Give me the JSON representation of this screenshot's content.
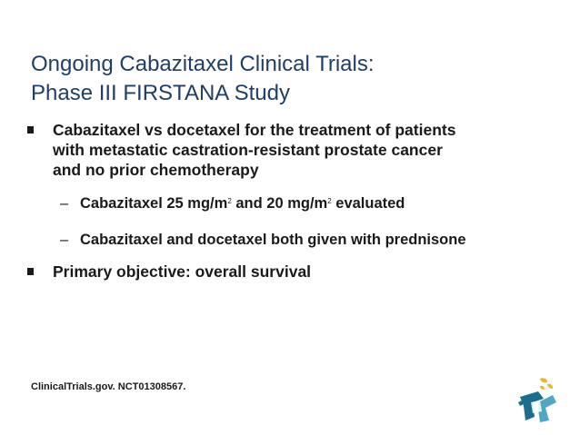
{
  "slide": {
    "title_line1": "Ongoing Cabazitaxel Clinical Trials:",
    "title_line2": "Phase III FIRSTANA Study",
    "bullets": [
      {
        "line1": "Cabazitaxel vs docetaxel for the treatment of patients",
        "line2": "with metastatic castration-resistant prostate cancer",
        "line3": "and no prior chemotherapy"
      },
      {
        "line1": "Primary objective: overall survival"
      }
    ],
    "sub_bullets": [
      {
        "dash": "–",
        "part1": "Cabazitaxel 25 mg/m",
        "sup1": "2",
        "part2": " and 20 mg/m",
        "sup2": "2",
        "part3": " evaluated"
      },
      {
        "dash": "–",
        "text": "Cabazitaxel and docetaxel both given with prednisone"
      }
    ],
    "footer": "ClinicalTrials.gov. NCT01308567."
  },
  "logo": {
    "icon": "stylized-figure-logo-icon",
    "color_dark": "#1b6e8c",
    "color_light": "#4fa7c4",
    "color_accent": "#e6b82a"
  }
}
